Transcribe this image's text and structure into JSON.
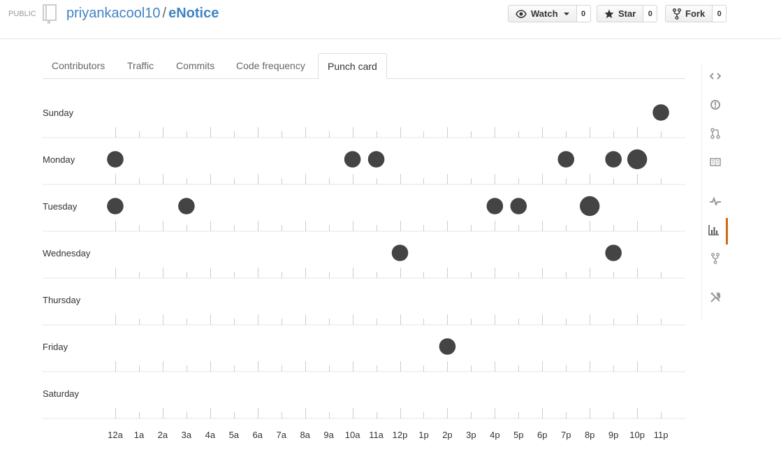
{
  "repo": {
    "visibility": "PUBLIC",
    "owner": "priyankacool10",
    "separator": "/",
    "name": "eNotice"
  },
  "actions": {
    "watch": {
      "label": "Watch",
      "count": "0"
    },
    "star": {
      "label": "Star",
      "count": "0"
    },
    "fork": {
      "label": "Fork",
      "count": "0"
    }
  },
  "tabs": [
    {
      "label": "Contributors"
    },
    {
      "label": "Traffic"
    },
    {
      "label": "Commits"
    },
    {
      "label": "Code frequency"
    },
    {
      "label": "Punch card",
      "selected": true
    }
  ],
  "sidebar": [
    {
      "icon": "code-icon"
    },
    {
      "icon": "issues-icon"
    },
    {
      "icon": "pull-request-icon"
    },
    {
      "icon": "wiki-icon"
    },
    {
      "icon": "pulse-icon"
    },
    {
      "icon": "graphs-icon",
      "selected": true
    },
    {
      "icon": "network-icon"
    },
    {
      "icon": "settings-icon"
    }
  ],
  "colors": {
    "link": "#4183c4",
    "dot": "#444444",
    "selected_nav": "#d26911"
  },
  "chart_data": {
    "type": "scatter",
    "days": [
      "Sunday",
      "Monday",
      "Tuesday",
      "Wednesday",
      "Thursday",
      "Friday",
      "Saturday"
    ],
    "hours": [
      "12a",
      "1a",
      "2a",
      "3a",
      "4a",
      "5a",
      "6a",
      "7a",
      "8a",
      "9a",
      "10a",
      "11a",
      "12p",
      "1p",
      "2p",
      "3p",
      "4p",
      "5p",
      "6p",
      "7p",
      "8p",
      "9p",
      "10p",
      "11p"
    ],
    "max_commits": 3,
    "points": [
      {
        "day": "Sunday",
        "hour": "11p",
        "commits": 1
      },
      {
        "day": "Monday",
        "hour": "12a",
        "commits": 1
      },
      {
        "day": "Monday",
        "hour": "10a",
        "commits": 1
      },
      {
        "day": "Monday",
        "hour": "11a",
        "commits": 1
      },
      {
        "day": "Monday",
        "hour": "7p",
        "commits": 1
      },
      {
        "day": "Monday",
        "hour": "9p",
        "commits": 1
      },
      {
        "day": "Monday",
        "hour": "10p",
        "commits": 2
      },
      {
        "day": "Tuesday",
        "hour": "12a",
        "commits": 1
      },
      {
        "day": "Tuesday",
        "hour": "3a",
        "commits": 1
      },
      {
        "day": "Tuesday",
        "hour": "4p",
        "commits": 1
      },
      {
        "day": "Tuesday",
        "hour": "5p",
        "commits": 1
      },
      {
        "day": "Tuesday",
        "hour": "8p",
        "commits": 2
      },
      {
        "day": "Wednesday",
        "hour": "12p",
        "commits": 1
      },
      {
        "day": "Wednesday",
        "hour": "9p",
        "commits": 1
      },
      {
        "day": "Friday",
        "hour": "2p",
        "commits": 1
      }
    ]
  }
}
